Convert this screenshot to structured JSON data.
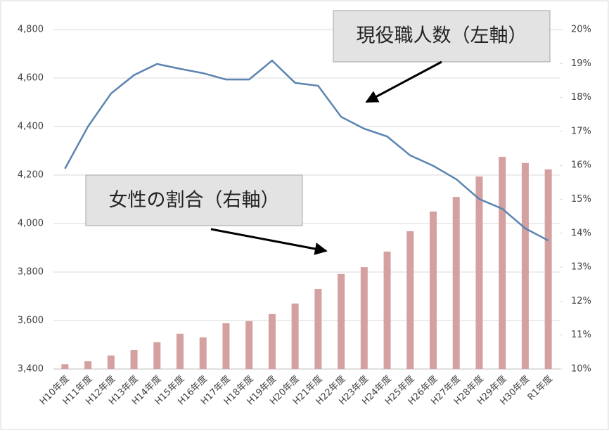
{
  "chart_data": {
    "type": "combo",
    "categories": [
      "H10年度",
      "H11年度",
      "H12年度",
      "H13年度",
      "H14年度",
      "H15年度",
      "H16年度",
      "H17年度",
      "H18年度",
      "H19年度",
      "H20年度",
      "H21年度",
      "H22年度",
      "H23年度",
      "H24年度",
      "H25年度",
      "H26年度",
      "H27年度",
      "H28年度",
      "H29年度",
      "H30年度",
      "R1年度"
    ],
    "series": [
      {
        "type": "bar",
        "axis": "y2",
        "color": "#d4a0a0",
        "values": [
          10.14,
          10.23,
          10.4,
          10.56,
          10.79,
          11.04,
          10.93,
          11.35,
          11.41,
          11.62,
          11.93,
          12.36,
          12.8,
          13.0,
          13.46,
          14.06,
          14.64,
          15.07,
          15.67,
          16.25,
          16.07,
          15.88
        ]
      },
      {
        "type": "line",
        "color": "#5b84b1",
        "values": [
          4226,
          4400,
          4536,
          4612,
          4658,
          4638,
          4620,
          4594,
          4594,
          4672,
          4580,
          4568,
          4440,
          4391,
          4359,
          4281,
          4238,
          4183,
          4101,
          4061,
          3980,
          3930
        ]
      }
    ],
    "ylim": [
      3400,
      4800
    ],
    "yticks": [
      {
        "value": 3400,
        "label": "3,400"
      },
      {
        "value": 3600,
        "label": "3,600"
      },
      {
        "value": 3800,
        "label": "3,800"
      },
      {
        "value": 4000,
        "label": "4,000"
      },
      {
        "value": 4200,
        "label": "4,200"
      },
      {
        "value": 4400,
        "label": "4,400"
      },
      {
        "value": 4600,
        "label": "4,600"
      },
      {
        "value": 4800,
        "label": "4,800"
      }
    ],
    "y2lim": [
      10,
      20
    ],
    "y2ticks": [
      {
        "value": 10,
        "label": "10%"
      },
      {
        "value": 11,
        "label": "11%"
      },
      {
        "value": 12,
        "label": "12%"
      },
      {
        "value": 13,
        "label": "13%"
      },
      {
        "value": 14,
        "label": "14%"
      },
      {
        "value": 15,
        "label": "15%"
      },
      {
        "value": 16,
        "label": "16%"
      },
      {
        "value": 17,
        "label": "17%"
      },
      {
        "value": 18,
        "label": "18%"
      },
      {
        "value": 19,
        "label": "19%"
      },
      {
        "value": 20,
        "label": "20%"
      }
    ],
    "grid": true,
    "annotations": [
      "現役職人数（左軸）",
      "女性の割合（右軸）"
    ]
  }
}
